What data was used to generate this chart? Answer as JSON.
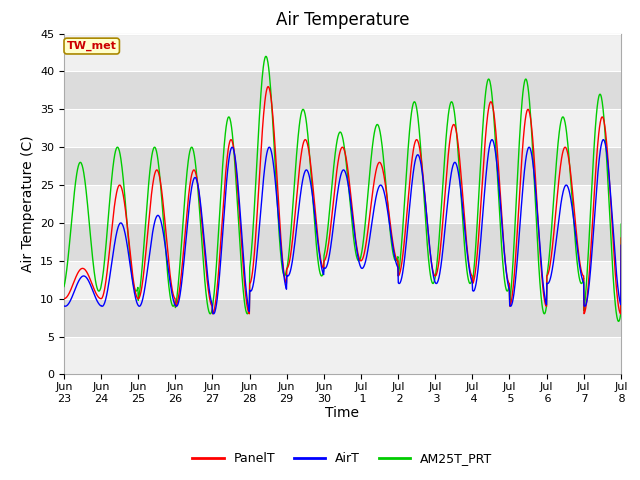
{
  "title": "Air Temperature",
  "xlabel": "Time",
  "ylabel": "Air Temperature (C)",
  "ylim": [
    0,
    45
  ],
  "yticks": [
    0,
    5,
    10,
    15,
    20,
    25,
    30,
    35,
    40,
    45
  ],
  "x_tick_labels": [
    "Jun\n23",
    "Jun\n24",
    "Jun\n25",
    "Jun\n26",
    "Jun\n27",
    "Jun\n28",
    "Jun\n29",
    "Jun\n30",
    "Jul\n 1",
    "Jul\n 2",
    "Jul\n 3",
    "Jul\n 4",
    "Jul\n 5",
    "Jul\n 6",
    "Jul\n 7",
    "Jul\n 8"
  ],
  "legend_labels": [
    "PanelT",
    "AirT",
    "AM25T_PRT"
  ],
  "legend_colors": [
    "#ff0000",
    "#0000ff",
    "#00cc00"
  ],
  "annotation_text": "TW_met",
  "annotation_facecolor": "#ffffcc",
  "annotation_edgecolor": "#aa8800",
  "outer_bg": "#ffffff",
  "plot_bg_light": "#f0f0f0",
  "plot_bg_dark": "#dcdcdc",
  "grid_color": "#ffffff",
  "title_fontsize": 12,
  "axis_fontsize": 10,
  "tick_fontsize": 8,
  "n_days": 16,
  "pts_per_day": 96,
  "day_mins_panel": [
    10,
    10,
    10,
    9,
    8,
    12,
    14,
    15,
    15,
    13,
    13,
    12,
    9,
    13,
    8,
    18
  ],
  "day_maxs_panel": [
    14,
    25,
    27,
    27,
    31,
    38,
    31,
    30,
    28,
    31,
    33,
    36,
    35,
    30,
    34,
    34
  ],
  "day_mins_air": [
    9,
    9,
    9,
    9,
    8,
    11,
    13,
    14,
    14,
    12,
    12,
    11,
    9,
    12,
    9,
    17
  ],
  "day_maxs_air": [
    13,
    20,
    21,
    26,
    30,
    30,
    27,
    27,
    25,
    29,
    28,
    31,
    30,
    25,
    31,
    31
  ],
  "day_mins_green": [
    11,
    11,
    9,
    8,
    8,
    13,
    13,
    15,
    15,
    12,
    12,
    11,
    8,
    12,
    7,
    19
  ],
  "day_maxs_green": [
    28,
    30,
    30,
    30,
    34,
    42,
    35,
    32,
    33,
    36,
    36,
    39,
    39,
    34,
    37,
    37
  ],
  "phase_panel": 0.25,
  "phase_air": 0.28,
  "phase_green": 0.19
}
